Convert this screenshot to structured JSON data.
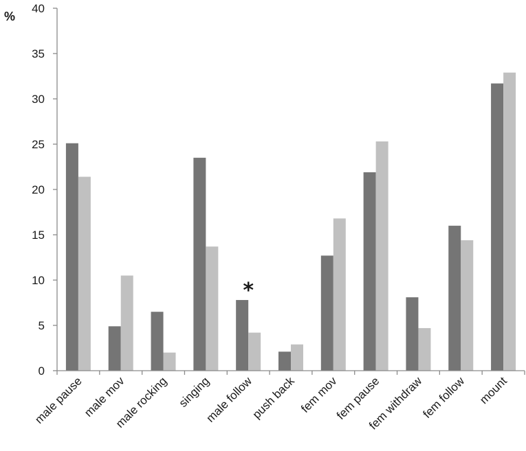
{
  "chart_data": {
    "type": "bar",
    "ylabel": "%",
    "ylim": [
      0,
      40
    ],
    "yticks": [
      0,
      5,
      10,
      15,
      20,
      25,
      30,
      35,
      40
    ],
    "grid": false,
    "categories": [
      "male pause",
      "male mov",
      "male rocking",
      "singing",
      "male follow",
      "push back",
      "fem mov",
      "fem pause",
      "fem withdraw",
      "fem follow",
      "mount"
    ],
    "series": [
      {
        "color": "#757575",
        "values": [
          25.1,
          4.9,
          6.5,
          23.5,
          7.8,
          2.1,
          12.7,
          21.9,
          8.1,
          16.0,
          31.7
        ]
      },
      {
        "color": "#c0c0c0",
        "values": [
          21.4,
          10.5,
          2.0,
          13.7,
          4.2,
          2.9,
          16.8,
          25.3,
          4.7,
          14.4,
          32.9
        ]
      }
    ],
    "annotations": [
      {
        "text": "*",
        "category": "male follow"
      }
    ]
  }
}
